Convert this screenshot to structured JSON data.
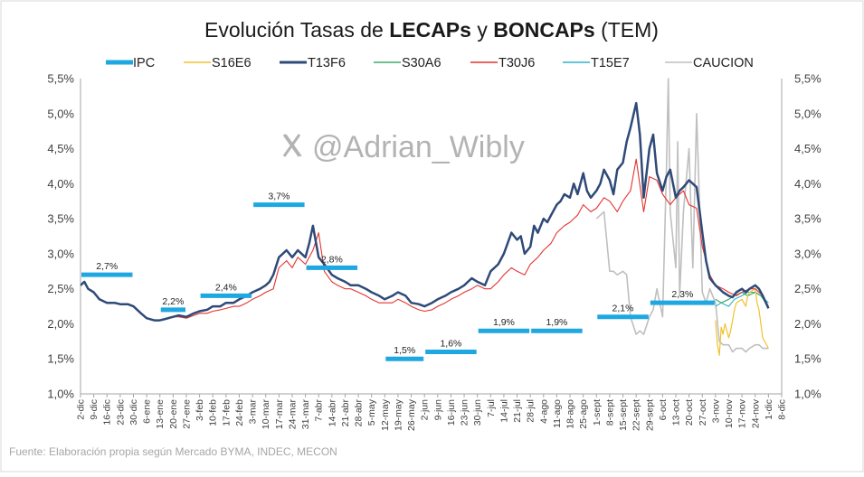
{
  "chart_data": {
    "type": "line",
    "title_parts": [
      {
        "text": "Evolución Tasas de ",
        "bold": false
      },
      {
        "text": "LECAPs",
        "bold": true
      },
      {
        "text": " y ",
        "bold": false
      },
      {
        "text": "BONCAPs",
        "bold": true
      },
      {
        "text": " (TEM)",
        "bold": false
      }
    ],
    "watermark": "@Adrian_Wibly",
    "watermark_icon": "x-logo-icon",
    "source": "Fuente: Elaboración propia según Mercado BYMA, INDEC, MECON",
    "legend_position": "top",
    "grid": false,
    "ylim": [
      1.0,
      5.5
    ],
    "y_ticks": [
      1.0,
      1.5,
      2.0,
      2.5,
      3.0,
      3.5,
      4.0,
      4.5,
      5.0,
      5.5
    ],
    "y_tick_labels": [
      "1,0%",
      "1,5%",
      "2,0%",
      "2,5%",
      "3,0%",
      "3,5%",
      "4,0%",
      "4,5%",
      "5,0%",
      "5,5%"
    ],
    "x_tick_labels": [
      "2-dic",
      "9-dic",
      "16-dic",
      "23-dic",
      "30-dic",
      "6-ene",
      "13-ene",
      "20-ene",
      "27-ene",
      "3-feb",
      "10-feb",
      "17-feb",
      "24-feb",
      "3-mar",
      "10-mar",
      "17-mar",
      "24-mar",
      "31-mar",
      "7-abr",
      "14-abr",
      "21-abr",
      "28-abr",
      "5-may",
      "12-may",
      "19-may",
      "26-may",
      "2-jun",
      "9-jun",
      "16-jun",
      "23-jun",
      "30-jun",
      "7-jul",
      "14-jul",
      "21-jul",
      "28-jul",
      "4-ago",
      "11-ago",
      "18-ago",
      "25-ago",
      "1-sept",
      "8-sept",
      "15-sept",
      "22-sept",
      "29-sept",
      "6-oct",
      "13-oct",
      "20-oct",
      "27-oct",
      "3-nov",
      "10-nov",
      "17-nov",
      "24-nov",
      "1-dic",
      "8-dic"
    ],
    "ipc": {
      "name": "IPC",
      "color": "#1ea7e1",
      "segments": [
        {
          "from": "2-dic",
          "to": "30-dic",
          "value": 2.7,
          "label": "2,7%"
        },
        {
          "from": "13-ene",
          "to": "27-ene",
          "value": 2.2,
          "label": "2,2%"
        },
        {
          "from": "3-feb",
          "to": "3-mar",
          "value": 2.4,
          "label": "2,4%"
        },
        {
          "from": "3-mar",
          "to": "31-mar",
          "value": 3.7,
          "label": "3,7%"
        },
        {
          "from": "31-mar",
          "to": "28-abr",
          "value": 2.8,
          "label": "2,8%"
        },
        {
          "from": "12-may",
          "to": "2-jun",
          "value": 1.5,
          "label": "1,5%"
        },
        {
          "from": "2-jun",
          "to": "30-jun",
          "value": 1.6,
          "label": "1,6%"
        },
        {
          "from": "30-jun",
          "to": "28-jul",
          "value": 1.9,
          "label": "1,9%"
        },
        {
          "from": "28-jul",
          "to": "25-ago",
          "value": 1.9,
          "label": "1,9%"
        },
        {
          "from": "1-sept",
          "to": "29-sept",
          "value": 2.1,
          "label": "2,1%"
        },
        {
          "from": "29-sept",
          "to": "3-nov",
          "value": 2.3,
          "label": "2,3%"
        }
      ]
    },
    "series": [
      {
        "name": "S16E6",
        "color": "#f2c12e",
        "width": 1.2,
        "x": [
          "3-nov",
          "4-nov",
          "5-nov",
          "6-nov",
          "7-nov",
          "8-nov",
          "10-nov",
          "11-nov",
          "12-nov",
          "13-nov",
          "14-nov",
          "17-nov",
          "18-nov",
          "19-nov",
          "20-nov",
          "21-nov",
          "24-nov",
          "25-nov",
          "26-nov",
          "27-nov",
          "28-nov",
          "1-dic"
        ],
        "values": [
          2.05,
          1.7,
          1.55,
          1.95,
          1.85,
          2.0,
          1.8,
          1.9,
          2.05,
          2.2,
          2.3,
          2.35,
          2.3,
          2.25,
          2.4,
          2.45,
          2.5,
          2.3,
          2.2,
          2.0,
          1.8,
          1.65
        ]
      },
      {
        "name": "T13F6",
        "color": "#2f4a78",
        "width": 2.5,
        "x": [
          "2-dic",
          "4-dic",
          "6-dic",
          "9-dic",
          "12-dic",
          "16-dic",
          "20-dic",
          "23-dic",
          "27-dic",
          "30-dic",
          "3-ene",
          "6-ene",
          "10-ene",
          "13-ene",
          "16-ene",
          "20-ene",
          "23-ene",
          "27-ene",
          "31-ene",
          "3-feb",
          "7-feb",
          "10-feb",
          "14-feb",
          "17-feb",
          "21-feb",
          "24-feb",
          "28-feb",
          "3-mar",
          "7-mar",
          "10-mar",
          "12-mar",
          "14-mar",
          "17-mar",
          "19-mar",
          "21-mar",
          "24-mar",
          "27-mar",
          "31-mar",
          "2-abr",
          "4-abr",
          "7-abr",
          "10-abr",
          "14-abr",
          "17-abr",
          "21-abr",
          "24-abr",
          "28-abr",
          "2-may",
          "5-may",
          "9-may",
          "12-may",
          "16-may",
          "19-may",
          "23-may",
          "26-may",
          "30-may",
          "2-jun",
          "6-jun",
          "9-jun",
          "13-jun",
          "16-jun",
          "20-jun",
          "23-jun",
          "27-jun",
          "30-jun",
          "4-jul",
          "7-jul",
          "11-jul",
          "14-jul",
          "16-jul",
          "18-jul",
          "21-jul",
          "23-jul",
          "25-jul",
          "28-jul",
          "30-jul",
          "1-ago",
          "4-ago",
          "6-ago",
          "8-ago",
          "11-ago",
          "13-ago",
          "15-ago",
          "18-ago",
          "20-ago",
          "22-ago",
          "25-ago",
          "27-ago",
          "29-ago",
          "1-sept",
          "3-sept",
          "5-sept",
          "8-sept",
          "10-sept",
          "12-sept",
          "15-sept",
          "17-sept",
          "19-sept",
          "22-sept",
          "24-sept",
          "26-sept",
          "29-sept",
          "1-oct",
          "3-oct",
          "6-oct",
          "8-oct",
          "10-oct",
          "13-oct",
          "15-oct",
          "17-oct",
          "20-oct",
          "22-oct",
          "24-oct",
          "27-oct",
          "29-oct",
          "31-oct",
          "3-nov",
          "5-nov",
          "7-nov",
          "10-nov",
          "12-nov",
          "14-nov",
          "17-nov",
          "19-nov",
          "21-nov",
          "24-nov",
          "26-nov",
          "28-nov",
          "1-dic"
        ],
        "values": [
          2.55,
          2.6,
          2.5,
          2.45,
          2.35,
          2.3,
          2.3,
          2.28,
          2.28,
          2.25,
          2.15,
          2.08,
          2.05,
          2.05,
          2.07,
          2.1,
          2.12,
          2.1,
          2.15,
          2.18,
          2.2,
          2.25,
          2.25,
          2.3,
          2.3,
          2.35,
          2.4,
          2.45,
          2.5,
          2.55,
          2.6,
          2.7,
          2.95,
          3.0,
          3.05,
          2.95,
          3.05,
          2.95,
          3.15,
          3.4,
          2.95,
          2.85,
          2.7,
          2.65,
          2.6,
          2.55,
          2.55,
          2.5,
          2.45,
          2.4,
          2.35,
          2.4,
          2.45,
          2.4,
          2.3,
          2.28,
          2.25,
          2.3,
          2.35,
          2.4,
          2.45,
          2.5,
          2.55,
          2.65,
          2.6,
          2.55,
          2.75,
          2.85,
          3.0,
          3.15,
          3.3,
          3.2,
          3.25,
          3.0,
          3.1,
          3.4,
          3.3,
          3.5,
          3.45,
          3.55,
          3.7,
          3.75,
          3.85,
          3.8,
          4.0,
          3.85,
          4.15,
          3.9,
          3.8,
          3.9,
          4.0,
          4.2,
          4.05,
          3.85,
          4.2,
          4.3,
          4.6,
          4.8,
          5.15,
          4.7,
          3.8,
          4.5,
          4.7,
          4.15,
          3.9,
          4.1,
          4.2,
          3.8,
          3.9,
          3.95,
          4.05,
          4.0,
          3.95,
          3.3,
          2.9,
          2.65,
          2.55,
          2.5,
          2.45,
          2.4,
          2.38,
          2.45,
          2.5,
          2.45,
          2.5,
          2.55,
          2.5,
          2.4,
          2.22
        ]
      },
      {
        "name": "S30A6",
        "color": "#3fa96a",
        "width": 1.2,
        "x": [
          "3-nov",
          "6-nov",
          "10-nov",
          "13-nov",
          "17-nov",
          "20-nov",
          "24-nov",
          "27-nov",
          "1-dic"
        ],
        "values": [
          2.35,
          2.3,
          2.35,
          2.4,
          2.45,
          2.4,
          2.45,
          2.4,
          2.25
        ]
      },
      {
        "name": "T30J6",
        "color": "#e3342f",
        "width": 1.1,
        "x": [
          "2-dic",
          "4-dic",
          "6-dic",
          "9-dic",
          "12-dic",
          "16-dic",
          "20-dic",
          "23-dic",
          "27-dic",
          "30-dic",
          "3-ene",
          "6-ene",
          "10-ene",
          "13-ene",
          "16-ene",
          "20-ene",
          "23-ene",
          "27-ene",
          "31-ene",
          "3-feb",
          "7-feb",
          "10-feb",
          "14-feb",
          "17-feb",
          "21-feb",
          "24-feb",
          "28-feb",
          "3-mar",
          "7-mar",
          "10-mar",
          "14-mar",
          "17-mar",
          "21-mar",
          "24-mar",
          "27-mar",
          "31-mar",
          "4-abr",
          "7-abr",
          "10-abr",
          "14-abr",
          "17-abr",
          "21-abr",
          "24-abr",
          "28-abr",
          "2-may",
          "5-may",
          "9-may",
          "12-may",
          "16-may",
          "19-may",
          "23-may",
          "26-may",
          "30-may",
          "2-jun",
          "6-jun",
          "9-jun",
          "13-jun",
          "16-jun",
          "20-jun",
          "23-jun",
          "27-jun",
          "30-jun",
          "4-jul",
          "7-jul",
          "11-jul",
          "14-jul",
          "18-jul",
          "21-jul",
          "25-jul",
          "28-jul",
          "1-ago",
          "4-ago",
          "8-ago",
          "11-ago",
          "15-ago",
          "18-ago",
          "22-ago",
          "25-ago",
          "29-ago",
          "1-sept",
          "5-sept",
          "8-sept",
          "12-sept",
          "15-sept",
          "19-sept",
          "22-sept",
          "26-sept",
          "29-sept",
          "3-oct",
          "6-oct",
          "10-oct",
          "13-oct",
          "17-oct",
          "20-oct",
          "24-oct",
          "27-oct",
          "31-oct",
          "3-nov",
          "7-nov",
          "10-nov",
          "14-nov",
          "17-nov",
          "21-nov",
          "24-nov",
          "28-nov",
          "1-dic"
        ],
        "values": [
          2.55,
          2.6,
          2.5,
          2.45,
          2.35,
          2.3,
          2.3,
          2.28,
          2.28,
          2.25,
          2.15,
          2.08,
          2.05,
          2.05,
          2.07,
          2.1,
          2.1,
          2.08,
          2.12,
          2.15,
          2.15,
          2.18,
          2.2,
          2.22,
          2.25,
          2.25,
          2.3,
          2.35,
          2.4,
          2.45,
          2.5,
          2.8,
          2.9,
          2.8,
          2.95,
          2.85,
          3.05,
          3.3,
          2.75,
          2.6,
          2.55,
          2.5,
          2.5,
          2.45,
          2.4,
          2.35,
          2.3,
          2.3,
          2.3,
          2.35,
          2.3,
          2.25,
          2.2,
          2.18,
          2.2,
          2.25,
          2.3,
          2.35,
          2.4,
          2.45,
          2.5,
          2.55,
          2.5,
          2.5,
          2.6,
          2.7,
          2.8,
          2.75,
          2.7,
          2.85,
          2.95,
          3.05,
          3.15,
          3.3,
          3.4,
          3.45,
          3.55,
          3.7,
          3.6,
          3.65,
          3.8,
          3.75,
          3.6,
          3.75,
          3.9,
          4.35,
          3.6,
          4.1,
          4.05,
          3.85,
          3.7,
          3.8,
          3.9,
          3.7,
          3.65,
          3.1,
          2.7,
          2.55,
          2.5,
          2.45,
          2.4,
          2.45,
          2.5,
          2.5,
          2.4,
          2.25
        ]
      },
      {
        "name": "T15E7",
        "color": "#2eb3c8",
        "width": 1.1,
        "x": [
          "3-nov",
          "6-nov",
          "10-nov",
          "13-nov",
          "17-nov",
          "20-nov",
          "24-nov",
          "27-nov",
          "1-dic"
        ],
        "values": [
          2.25,
          2.3,
          2.25,
          2.35,
          2.4,
          2.45,
          2.45,
          2.4,
          2.3
        ]
      },
      {
        "name": "CAUCION",
        "color": "#bfbfbf",
        "width": 1.6,
        "x": [
          "1-sept",
          "3-sept",
          "5-sept",
          "8-sept",
          "10-sept",
          "12-sept",
          "15-sept",
          "17-sept",
          "19-sept",
          "22-sept",
          "24-sept",
          "26-sept",
          "29-sept",
          "1-oct",
          "3-oct",
          "6-oct",
          "8-oct",
          "9-oct",
          "10-oct",
          "13-oct",
          "14-oct",
          "15-oct",
          "17-oct",
          "20-oct",
          "22-oct",
          "24-oct",
          "27-oct",
          "29-oct",
          "31-oct",
          "3-nov",
          "5-nov",
          "7-nov",
          "10-nov",
          "12-nov",
          "14-nov",
          "17-nov",
          "19-nov",
          "21-nov",
          "24-nov",
          "26-nov",
          "28-nov",
          "1-dic"
        ],
        "values": [
          3.5,
          3.55,
          3.6,
          2.75,
          2.75,
          2.7,
          2.75,
          2.7,
          2.1,
          1.85,
          1.9,
          1.85,
          2.1,
          2.2,
          2.5,
          2.1,
          4.2,
          5.5,
          3.6,
          2.8,
          4.6,
          2.4,
          3.6,
          4.5,
          2.8,
          5.0,
          2.45,
          2.3,
          2.5,
          2.3,
          1.75,
          1.7,
          1.7,
          1.6,
          1.65,
          1.65,
          1.6,
          1.65,
          1.7,
          1.7,
          1.65,
          1.65
        ]
      }
    ]
  }
}
